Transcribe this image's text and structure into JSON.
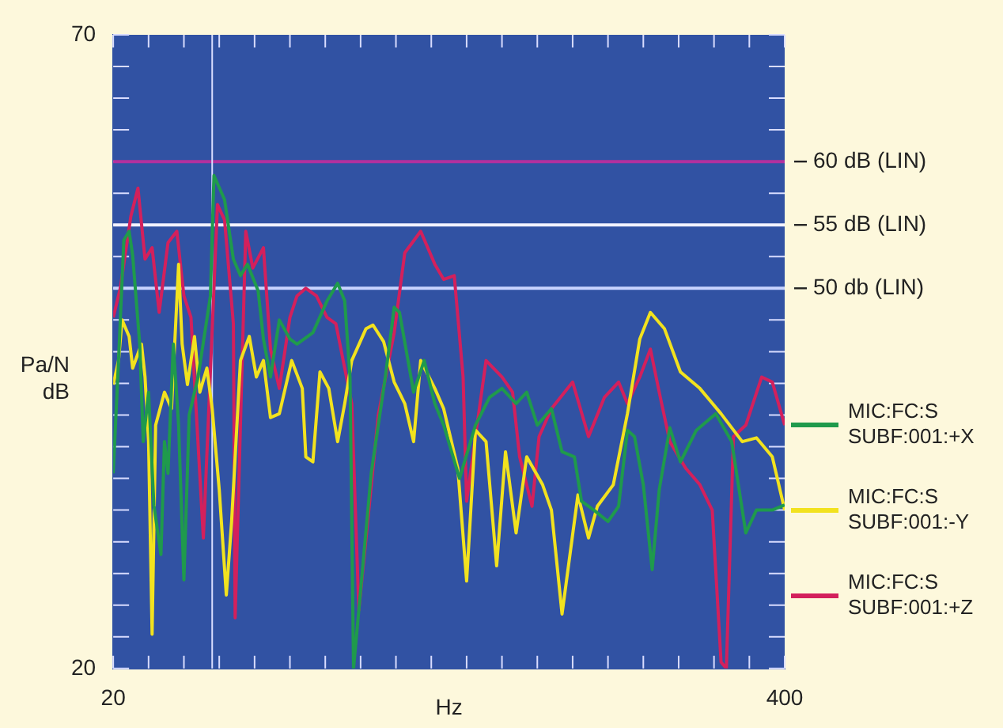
{
  "chart_data": {
    "type": "line",
    "xlabel": "Hz",
    "ylabel": "Pa/N dB",
    "legend": "right",
    "marker": "none",
    "line_style": "solid",
    "xlim": [
      20,
      400
    ],
    "ylim": [
      20,
      70
    ],
    "xticks": [
      20,
      {
        "value": 40,
        "label": null
      },
      {
        "value": 60,
        "label": null
      },
      {
        "value": 80,
        "label": null
      },
      {
        "value": 100,
        "label": null
      },
      {
        "value": 120,
        "label": null
      },
      {
        "value": 140,
        "label": null
      },
      {
        "value": 160,
        "label": null
      },
      {
        "value": 180,
        "label": null
      },
      {
        "value": 200,
        "label": null
      },
      {
        "value": 220,
        "label": null
      },
      {
        "value": 240,
        "label": null
      },
      {
        "value": 260,
        "label": null
      },
      {
        "value": 280,
        "label": null
      },
      {
        "value": 300,
        "label": null
      },
      {
        "value": 320,
        "label": null
      },
      {
        "value": 340,
        "label": null
      },
      {
        "value": 360,
        "label": null
      },
      {
        "value": 380,
        "label": null
      },
      400
    ],
    "yticks": [
      20,
      {
        "value": 22.5,
        "label": null
      },
      {
        "value": 25,
        "label": null
      },
      {
        "value": 27.5,
        "label": null
      },
      {
        "value": 30,
        "label": null
      },
      {
        "value": 32.5,
        "label": null
      },
      {
        "value": 35,
        "label": null
      },
      {
        "value": 37.5,
        "label": null
      },
      {
        "value": 40,
        "label": null
      },
      {
        "value": 42.5,
        "label": null
      },
      {
        "value": 45,
        "label": null
      },
      {
        "value": 47.5,
        "label": null
      },
      {
        "value": 50,
        "label": null
      },
      {
        "value": 52.5,
        "label": null
      },
      {
        "value": 55,
        "label": null
      },
      {
        "value": 57.5,
        "label": null
      },
      {
        "value": 60,
        "label": null
      },
      {
        "value": 62.5,
        "label": null
      },
      {
        "value": 65,
        "label": null
      },
      {
        "value": 67.5,
        "label": null
      },
      70
    ],
    "ref_lines": [
      {
        "axis": "y",
        "value": 60,
        "label": "60 dB (LIN)",
        "color": "#b3309e"
      },
      {
        "axis": "y",
        "value": 55,
        "label": "55 dB (LIN)",
        "color": "#f2f2ff"
      },
      {
        "axis": "y",
        "value": 50,
        "label": "50 db (LIN)",
        "color": "#c8d4ff"
      },
      {
        "axis": "x",
        "value": 76,
        "color": "#d8dcff"
      }
    ],
    "series": [
      {
        "name": "MIC:FC:S SUBF:001:+X",
        "color": "#1f9a4c",
        "x": [
          20,
          23,
          26,
          29,
          31,
          35,
          37,
          40,
          43,
          47,
          49,
          51,
          54,
          57,
          60,
          63,
          68,
          75,
          77,
          83,
          88,
          92,
          96,
          102,
          105,
          109,
          114,
          120,
          124,
          133,
          141,
          147,
          151,
          154,
          156,
          166,
          174,
          179,
          182,
          190,
          196,
          202,
          207,
          216,
          225,
          233,
          240,
          248,
          254,
          260,
          268,
          274,
          281,
          285,
          292,
          300,
          306,
          311,
          315,
          320,
          325,
          329,
          335,
          341,
          350,
          361,
          370,
          378,
          384,
          393,
          400
        ],
        "values": [
          35.4,
          44.3,
          53.8,
          54.5,
          52.6,
          45.6,
          37.9,
          41.8,
          32.9,
          29,
          37.9,
          35.4,
          45.6,
          39.2,
          27,
          40,
          43,
          49.4,
          58.9,
          57,
          52.3,
          51,
          51.9,
          49.8,
          46,
          43,
          47.5,
          46,
          45.6,
          46.5,
          49,
          50.4,
          49,
          43,
          20,
          35.4,
          43,
          48.5,
          48.1,
          41.8,
          44.3,
          40.9,
          39.2,
          35,
          39.2,
          41.4,
          42.1,
          40.9,
          41.8,
          39.2,
          40.5,
          37.1,
          36.7,
          33.2,
          32.5,
          31.6,
          32.8,
          38.8,
          38.3,
          34.5,
          27.8,
          34.1,
          39,
          36.3,
          38.8,
          40.1,
          37.9,
          30.7,
          32.5,
          32.5,
          32.9
        ]
      },
      {
        "name": "MIC:FC:S SUBF:001:-Y",
        "color": "#f2e21e",
        "x": [
          20,
          23,
          25,
          29,
          31,
          36,
          38,
          40,
          42,
          44,
          49,
          53,
          57,
          59,
          62,
          66,
          69,
          73,
          76,
          80,
          84,
          87,
          92,
          97,
          101,
          105,
          109,
          114,
          121,
          127,
          129,
          133,
          137,
          142,
          147,
          151,
          155,
          163,
          167,
          173,
          179,
          185,
          190,
          194,
          202,
          207,
          215,
          220,
          225,
          231,
          237,
          242,
          248,
          254,
          263,
          268,
          274,
          283,
          289,
          294,
          303,
          311,
          318,
          324,
          332,
          341,
          352,
          364,
          376,
          384,
          393,
          400
        ],
        "values": [
          42.4,
          44.3,
          47.5,
          46.2,
          43.7,
          45.6,
          43,
          37.9,
          22.7,
          39.2,
          41.8,
          40.5,
          51.9,
          45.6,
          42.4,
          46.2,
          41.8,
          43.7,
          40.5,
          34.1,
          25.8,
          31.6,
          44.3,
          46.2,
          43,
          44.3,
          39.8,
          40.1,
          44.3,
          42.1,
          36.7,
          36.3,
          43.4,
          42.1,
          37.9,
          40.9,
          44.3,
          46.8,
          47.1,
          45.8,
          42.6,
          40.9,
          37.9,
          44.3,
          42.1,
          40.5,
          35.8,
          26.9,
          38.8,
          37.9,
          28.1,
          37.1,
          30.7,
          36.7,
          34.5,
          32.5,
          24.3,
          33.7,
          30.3,
          32.8,
          34.5,
          40.1,
          46,
          48.1,
          46.8,
          43.4,
          42.1,
          40.1,
          37.9,
          38.2,
          36.7,
          32.5
        ]
      },
      {
        "name": "MIC:FC:S SUBF:001:+Z",
        "color": "#d3205c",
        "x": [
          20,
          24,
          30,
          34,
          38,
          42,
          46,
          51,
          56,
          60,
          64,
          71,
          79,
          83,
          88,
          89,
          95,
          99,
          105,
          109,
          114,
          120,
          124,
          129,
          135,
          141,
          146,
          155,
          159,
          170,
          179,
          185,
          194,
          202,
          207,
          213,
          218,
          220,
          225,
          231,
          240,
          246,
          250,
          257,
          261,
          268,
          280,
          289,
          298,
          306,
          311,
          318,
          324,
          329,
          335,
          344,
          352,
          359,
          364,
          367,
          371,
          378,
          387,
          393,
          400
        ],
        "values": [
          47.7,
          50,
          55.7,
          57.9,
          52.3,
          53.2,
          48.1,
          53.6,
          54.5,
          49.4,
          47.7,
          30.3,
          56.6,
          55.4,
          47.2,
          24,
          54.5,
          51.6,
          53.2,
          45.2,
          42.1,
          47.7,
          49.4,
          50,
          49.4,
          47.7,
          47.2,
          40.9,
          24.6,
          40,
          46.5,
          52.8,
          54.5,
          51.9,
          50.7,
          51,
          43,
          33.2,
          38.3,
          44.3,
          43,
          41.8,
          36.7,
          32.8,
          38.3,
          40.5,
          42.6,
          38.3,
          41.4,
          42.6,
          40.9,
          43,
          45.2,
          41.8,
          37.9,
          35.8,
          34.5,
          32.5,
          20.5,
          20,
          38.3,
          39.2,
          43,
          42.6,
          39.2
        ]
      }
    ]
  }
}
